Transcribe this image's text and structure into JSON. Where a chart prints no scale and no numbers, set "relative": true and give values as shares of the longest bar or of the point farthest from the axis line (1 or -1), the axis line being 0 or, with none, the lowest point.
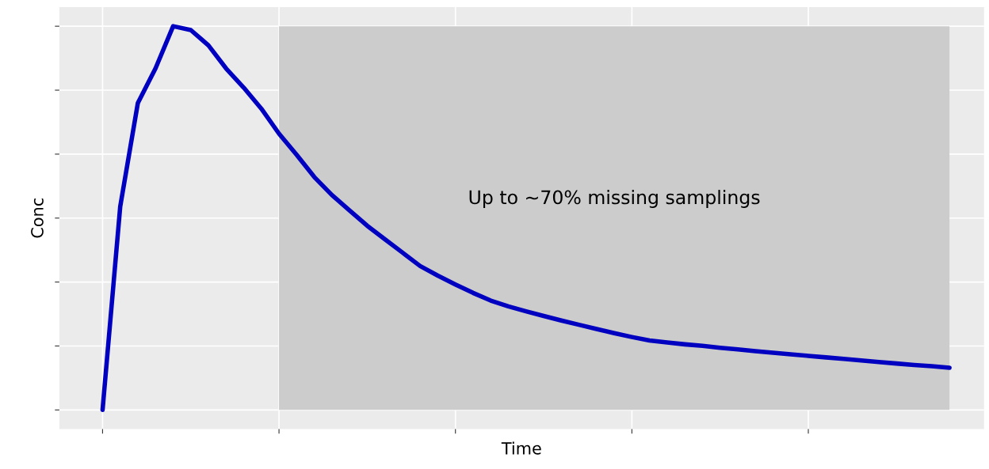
{
  "chart_data": {
    "type": "line",
    "xlabel": "Time",
    "ylabel": "Conc",
    "relative": true,
    "categories": [
      null,
      null,
      null,
      null,
      null,
      null,
      null,
      null,
      null,
      null,
      null,
      null,
      null,
      null,
      null,
      null,
      null,
      null,
      null,
      null,
      null,
      null,
      null,
      null,
      null,
      null,
      null,
      null,
      null,
      null,
      null,
      null,
      null,
      null,
      null,
      null,
      null,
      null,
      null,
      null,
      null,
      null,
      null,
      null,
      null,
      null,
      null,
      null,
      null
    ],
    "series": [
      {
        "color": "#0000c0",
        "values": [
          0,
          0.53,
          0.8,
          0.89,
          1.0,
          0.99,
          0.95,
          0.89,
          0.84,
          0.785,
          0.72,
          0.665,
          0.607,
          0.56,
          0.52,
          0.48,
          0.445,
          0.41,
          0.375,
          0.35,
          0.327,
          0.305,
          0.285,
          0.27,
          0.257,
          0.245,
          0.233,
          0.222,
          0.211,
          0.2,
          0.19,
          0.181,
          0.176,
          0.171,
          0.167,
          0.162,
          0.158,
          0.153,
          0.149,
          0.145,
          0.141,
          0.137,
          0.133,
          0.129,
          0.125,
          0.121,
          0.117,
          0.114,
          0.11
        ]
      }
    ],
    "annotations": [
      "Up to ~70% missing samplings"
    ],
    "grid": true,
    "marker": "none",
    "line_style": "solid"
  }
}
